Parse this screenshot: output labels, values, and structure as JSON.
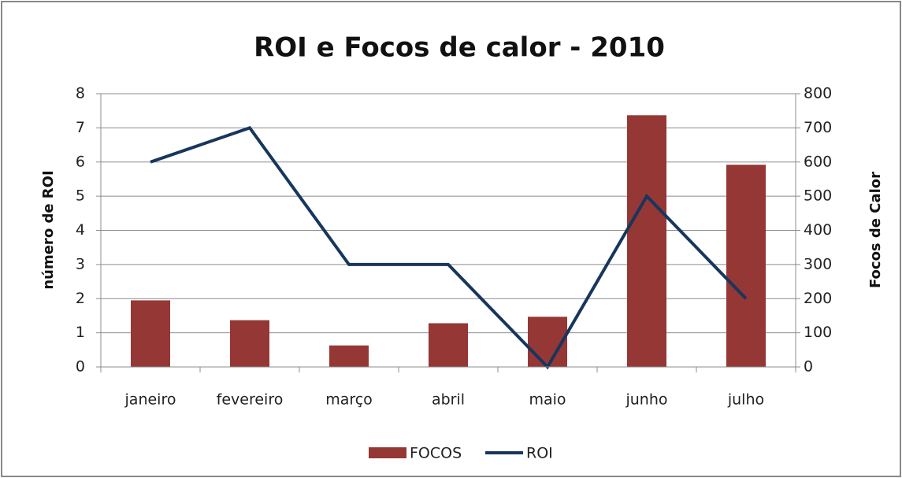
{
  "chart_data": {
    "type": "combo",
    "title": "ROI  e Focos de calor - 2010",
    "ylabel": "número de ROI",
    "y2label": "Focos de Calor",
    "categories": [
      "janeiro",
      "fevereiro",
      "março",
      "abril",
      "maio",
      "junho",
      "julho"
    ],
    "series": [
      {
        "name": "FOCOS",
        "type": "bar",
        "axis": "y2",
        "color": "#953735",
        "values": [
          195,
          137,
          63,
          128,
          147,
          737,
          592
        ]
      },
      {
        "name": "ROI",
        "type": "line",
        "axis": "y",
        "color": "#17365d",
        "values": [
          6,
          7,
          3,
          3,
          0,
          5,
          2
        ]
      }
    ],
    "ylim": [
      0,
      8
    ],
    "yticks": [
      0,
      1,
      2,
      3,
      4,
      5,
      6,
      7,
      8
    ],
    "y2lim": [
      0,
      800
    ],
    "y2ticks": [
      0,
      100,
      200,
      300,
      400,
      500,
      600,
      700,
      800
    ],
    "grid": true,
    "legend": "bottom"
  }
}
